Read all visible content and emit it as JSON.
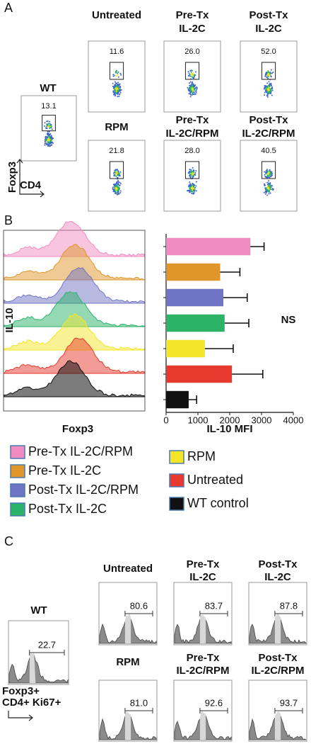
{
  "panel_a": {
    "label": "A",
    "wt": {
      "title": "WT",
      "value": "13.1"
    },
    "plots": [
      {
        "title": [
          "Untreated"
        ],
        "value": "11.6"
      },
      {
        "title": [
          "Pre-Tx",
          "IL-2C"
        ],
        "value": "26.0"
      },
      {
        "title": [
          "Post-Tx",
          "IL-2C"
        ],
        "value": "52.0"
      },
      {
        "title": [
          "RPM"
        ],
        "value": "21.8"
      },
      {
        "title": [
          "Pre-Tx",
          "IL-2C/RPM"
        ],
        "value": "28.0"
      },
      {
        "title": [
          "Post-Tx",
          "IL-2C/RPM"
        ],
        "value": "40.5"
      }
    ],
    "y_axis_label": "Foxp3",
    "x_axis_label": "CD4"
  },
  "panel_b": {
    "label": "B",
    "histogram": {
      "y_axis_label": "IL-10",
      "x_axis_label": "Foxp3"
    }
  },
  "chart_data": {
    "type": "bar",
    "orientation": "horizontal",
    "xlabel": "IL-10 MFI",
    "xlim": [
      0,
      4000
    ],
    "xticks": [
      0,
      1000,
      2000,
      3000,
      4000
    ],
    "annotation": "NS",
    "series": [
      {
        "name": "Pre-Tx IL-2C/RPM",
        "color": "#f08cc0",
        "values": [
          2650
        ],
        "errors": [
          430
        ]
      },
      {
        "name": "Pre-Tx IL-2C",
        "color": "#e0962a",
        "values": [
          1700
        ],
        "errors": [
          620
        ]
      },
      {
        "name": "Post-Tx IL-2C/RPM",
        "color": "#6f74c4",
        "values": [
          1800
        ],
        "errors": [
          750
        ]
      },
      {
        "name": "Post-Tx IL-2C",
        "color": "#2bb36a",
        "values": [
          1840
        ],
        "errors": [
          760
        ]
      },
      {
        "name": "RPM",
        "color": "#f2e52a",
        "values": [
          1220
        ],
        "errors": [
          890
        ]
      },
      {
        "name": "Untreated",
        "color": "#e8392e",
        "values": [
          2070
        ],
        "errors": [
          970
        ]
      },
      {
        "name": "WT control",
        "color": "#111111",
        "values": [
          710
        ],
        "errors": [
          250
        ]
      }
    ]
  },
  "panel_c": {
    "label": "C",
    "wt": {
      "title": "WT",
      "value": "22.7"
    },
    "plots": [
      {
        "title": [
          "Untreated"
        ],
        "value": "80.6"
      },
      {
        "title": [
          "Pre-Tx",
          "IL-2C"
        ],
        "value": "83.7"
      },
      {
        "title": [
          "Post-Tx",
          "IL-2C"
        ],
        "value": "87.8"
      },
      {
        "title": [
          "RPM"
        ],
        "value": "81.0"
      },
      {
        "title": [
          "Pre-Tx",
          "IL-2C/RPM"
        ],
        "value": "92.6"
      },
      {
        "title": [
          "Post-Tx",
          "IL-2C/RPM"
        ],
        "value": "93.7"
      }
    ],
    "axis_label": [
      "Foxp3+",
      "CD4+ Ki67+"
    ]
  }
}
